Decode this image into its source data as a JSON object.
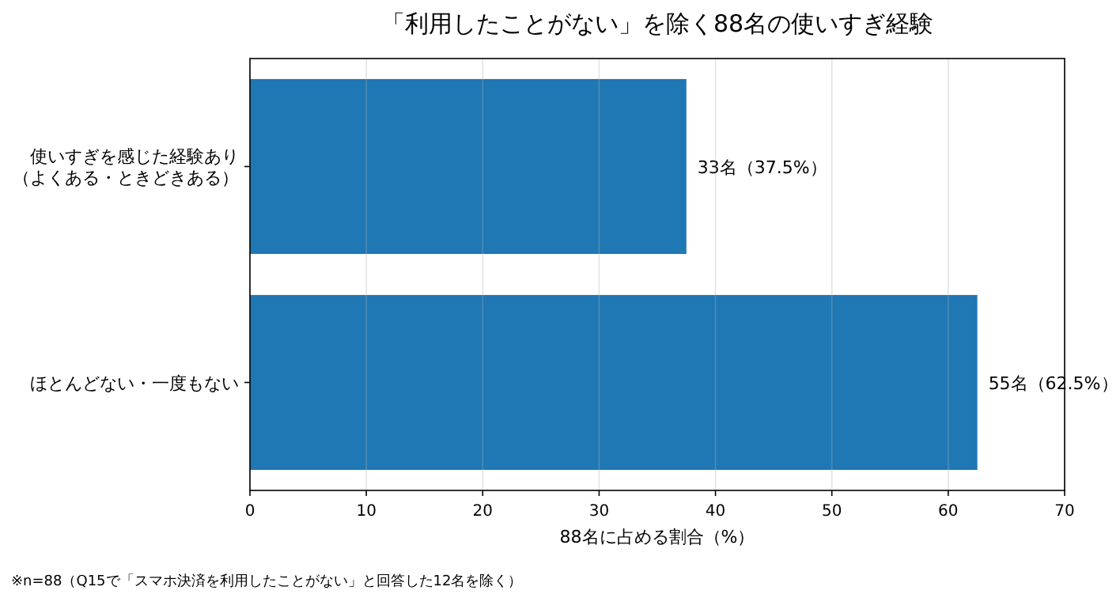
{
  "chart_data": {
    "type": "bar",
    "orientation": "horizontal",
    "title": "「利用したことがない」を除く88名の使いすぎ経験",
    "categories": [
      "使いすぎを感じた経験あり（よくある・ときどきある）",
      "ほとんどない・一度もない"
    ],
    "values": [
      37.5,
      62.5
    ],
    "color": "#1f77b4",
    "value_labels": [
      "33名（37.5%）",
      "55名（62.5%）"
    ],
    "xlim": [
      0,
      70
    ],
    "xticks": [
      0,
      10,
      20,
      30,
      40,
      50,
      60,
      70
    ],
    "grid": "x",
    "xlabel": "88名に占める割合（%）",
    "annotations": [
      "※n=88（Q15で「スマホ決済を利用したことがない」と回答した12名を除く）"
    ]
  }
}
